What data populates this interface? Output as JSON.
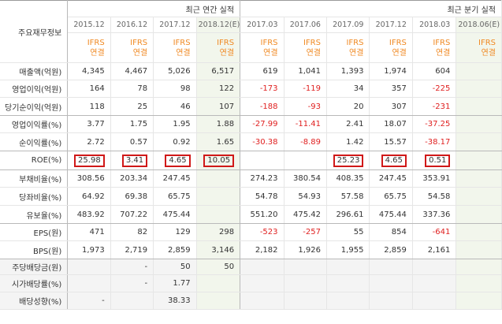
{
  "header": {
    "row_label_title": "주요재무정보",
    "annual_group": "최근 연간 실적",
    "quarter_group": "최근 분기 실적",
    "annual_periods": [
      "2015.12",
      "2016.12",
      "2017.12",
      "2018.12(E)"
    ],
    "quarter_periods": [
      "2017.03",
      "2017.06",
      "2017.09",
      "2017.12",
      "2018.03",
      "2018.06(E)"
    ],
    "gaap_line1": "IFRS",
    "gaap_line2": "연결"
  },
  "rows": [
    {
      "label": "매출액(억원)",
      "annual": [
        "4,345",
        "4,467",
        "5,026",
        "6,517"
      ],
      "quarter": [
        "619",
        "1,041",
        "1,393",
        "1,974",
        "604",
        ""
      ]
    },
    {
      "label": "영업이익(억원)",
      "annual": [
        "164",
        "78",
        "98",
        "122"
      ],
      "quarter": [
        "-173",
        "-119",
        "34",
        "357",
        "-225",
        ""
      ]
    },
    {
      "label": "당기순이익(억원)",
      "annual": [
        "118",
        "25",
        "46",
        "107"
      ],
      "quarter": [
        "-188",
        "-93",
        "20",
        "307",
        "-231",
        ""
      ]
    },
    {
      "label": "영업이익률(%)",
      "annual": [
        "3.77",
        "1.75",
        "1.95",
        "1.88"
      ],
      "quarter": [
        "-27.99",
        "-11.41",
        "2.41",
        "18.07",
        "-37.25",
        ""
      ]
    },
    {
      "label": "순이익률(%)",
      "annual": [
        "2.72",
        "0.57",
        "0.92",
        "1.65"
      ],
      "quarter": [
        "-30.38",
        "-8.89",
        "1.42",
        "15.57",
        "-38.17",
        ""
      ]
    },
    {
      "label": "ROE(%)",
      "annual": [
        "25.98",
        "3.41",
        "4.65",
        "10.05"
      ],
      "quarter": [
        "",
        "",
        "25.23",
        "4.65",
        "0.51",
        ""
      ]
    },
    {
      "label": "부채비율(%)",
      "annual": [
        "308.56",
        "203.34",
        "247.45",
        ""
      ],
      "quarter": [
        "274.23",
        "380.54",
        "408.35",
        "247.45",
        "353.91",
        ""
      ]
    },
    {
      "label": "당좌비율(%)",
      "annual": [
        "64.92",
        "69.38",
        "65.75",
        ""
      ],
      "quarter": [
        "54.78",
        "54.93",
        "57.58",
        "65.75",
        "54.58",
        ""
      ]
    },
    {
      "label": "유보율(%)",
      "annual": [
        "483.92",
        "707.22",
        "475.44",
        ""
      ],
      "quarter": [
        "551.20",
        "475.42",
        "296.61",
        "475.44",
        "337.36",
        ""
      ]
    },
    {
      "label": "EPS(원)",
      "annual": [
        "471",
        "82",
        "129",
        "298"
      ],
      "quarter": [
        "-523",
        "-257",
        "55",
        "854",
        "-641",
        ""
      ]
    },
    {
      "label": "BPS(원)",
      "annual": [
        "1,973",
        "2,719",
        "2,859",
        "3,146"
      ],
      "quarter": [
        "2,182",
        "1,926",
        "1,955",
        "2,859",
        "2,161",
        ""
      ]
    },
    {
      "label": "주당배당금(원)",
      "annual": [
        "",
        "-",
        "50",
        "50"
      ],
      "quarter": [
        "",
        "",
        "",
        "",
        "",
        ""
      ]
    },
    {
      "label": "시가배당률(%)",
      "annual": [
        "",
        "-",
        "1.77",
        ""
      ],
      "quarter": [
        "",
        "",
        "",
        "",
        "",
        ""
      ]
    },
    {
      "label": "배당성향(%)",
      "annual": [
        "-",
        "",
        "38.33",
        ""
      ],
      "quarter": [
        "",
        "",
        "",
        "",
        "",
        ""
      ]
    }
  ],
  "colors": {
    "negative": "#e02020",
    "gaap_orange": "#f08a24",
    "estimate_bg": "#f2f6ec",
    "highlight_box": "#d01818"
  }
}
